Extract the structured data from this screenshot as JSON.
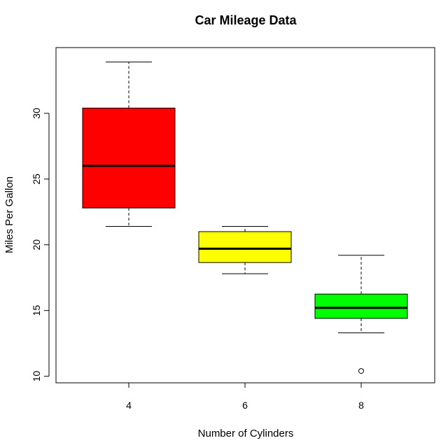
{
  "chart_data": {
    "type": "boxplot",
    "title": "Car Mileage Data",
    "xlabel": "Number of Cylinders",
    "ylabel": "Miles Per Gallon",
    "ylim": [
      9.5,
      35.0
    ],
    "yticks": [
      10,
      15,
      20,
      25,
      30
    ],
    "categories": [
      "4",
      "6",
      "8"
    ],
    "boxes": [
      {
        "category": "4",
        "color": "#ff0000",
        "whisker_low": 21.4,
        "q1": 22.8,
        "median": 26.0,
        "q3": 30.4,
        "whisker_high": 33.9,
        "outliers": []
      },
      {
        "category": "6",
        "color": "#ffff00",
        "whisker_low": 17.8,
        "q1": 18.65,
        "median": 19.7,
        "q3": 21.0,
        "whisker_high": 21.4,
        "outliers": []
      },
      {
        "category": "8",
        "color": "#00ff00",
        "whisker_low": 13.3,
        "q1": 14.4,
        "median": 15.2,
        "q3": 16.25,
        "whisker_high": 19.2,
        "outliers": [
          10.4
        ]
      }
    ],
    "grid": false,
    "legend": "none"
  }
}
